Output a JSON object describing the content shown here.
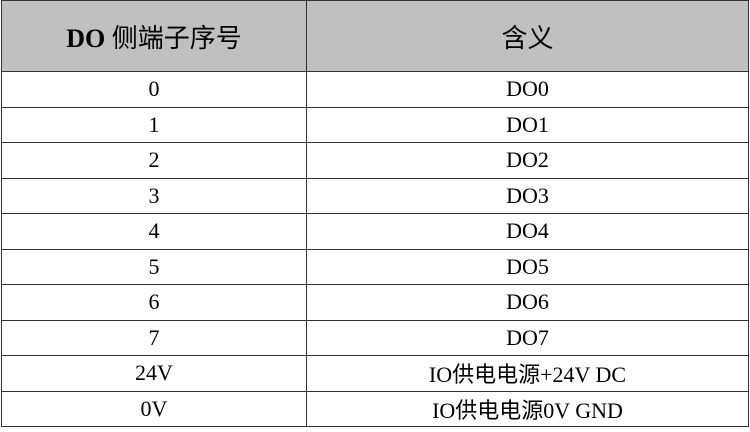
{
  "table": {
    "headers": [
      "DO 侧端子序号",
      "含义"
    ],
    "rows": [
      [
        "0",
        "DO0"
      ],
      [
        "1",
        "DO1"
      ],
      [
        "2",
        "DO2"
      ],
      [
        "3",
        "DO3"
      ],
      [
        "4",
        "DO4"
      ],
      [
        "5",
        "DO5"
      ],
      [
        "6",
        "DO6"
      ],
      [
        "7",
        "DO7"
      ],
      [
        "24V",
        "IO供电电源+24V DC"
      ],
      [
        "0V",
        "IO供电电源0V GND"
      ]
    ],
    "header_bg": "#c0c0c0"
  }
}
